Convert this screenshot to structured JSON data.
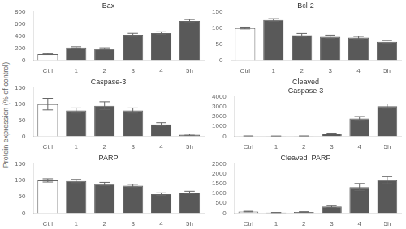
{
  "chart_data": [
    {
      "type": "bar",
      "title": "Bax",
      "categories": [
        "Ctrl",
        "1",
        "2",
        "3",
        "4",
        "5h"
      ],
      "values": [
        100,
        210,
        190,
        420,
        450,
        650
      ],
      "errors": [
        8,
        12,
        15,
        25,
        20,
        25
      ],
      "colors": [
        "#ffffff",
        "#595959",
        "#595959",
        "#595959",
        "#595959",
        "#595959"
      ],
      "ylim": [
        0,
        800
      ],
      "yticks": [
        0,
        200,
        400,
        600,
        800
      ],
      "grid": false
    },
    {
      "type": "bar",
      "title": "Bcl-2",
      "categories": [
        "Ctrl",
        "1",
        "2",
        "3",
        "4",
        "5h"
      ],
      "values": [
        100,
        125,
        78,
        73,
        70,
        57
      ],
      "errors": [
        3,
        4,
        5,
        5,
        4,
        4
      ],
      "colors": [
        "#ffffff",
        "#595959",
        "#595959",
        "#595959",
        "#595959",
        "#595959"
      ],
      "ylim": [
        0,
        150
      ],
      "yticks": [
        0,
        50,
        100,
        150
      ],
      "grid": false
    },
    {
      "type": "bar",
      "title": "Caspase-3",
      "ylabel": "Protein expression (% of control)",
      "categories": [
        "Ctrl",
        "1",
        "2",
        "3",
        "4",
        "5h"
      ],
      "values": [
        100,
        80,
        95,
        80,
        37,
        5
      ],
      "errors": [
        18,
        8,
        12,
        8,
        5,
        2
      ],
      "colors": [
        "#ffffff",
        "#595959",
        "#595959",
        "#595959",
        "#595959",
        "#595959"
      ],
      "ylim": [
        0,
        150
      ],
      "yticks": [
        0,
        50,
        100,
        150
      ],
      "grid": false
    },
    {
      "type": "bar",
      "title": "Cleaved\nCaspase-3",
      "categories": [
        "Ctrl",
        "1",
        "2",
        "3",
        "4",
        "5h"
      ],
      "values": [
        15,
        10,
        15,
        280,
        1800,
        3050
      ],
      "errors": [
        3,
        3,
        3,
        40,
        200,
        220
      ],
      "colors": [
        "#ffffff",
        "#595959",
        "#595959",
        "#595959",
        "#595959",
        "#595959"
      ],
      "ylim": [
        0,
        4000
      ],
      "yticks": [
        0,
        1000,
        2000,
        3000,
        4000
      ],
      "grid": false
    },
    {
      "type": "bar",
      "title": "PARP",
      "categories": [
        "Ctrl",
        "1",
        "2",
        "3",
        "4",
        "5h"
      ],
      "values": [
        100,
        98,
        89,
        84,
        58,
        63
      ],
      "errors": [
        5,
        5,
        5,
        4,
        4,
        4
      ],
      "colors": [
        "#ffffff",
        "#595959",
        "#595959",
        "#595959",
        "#595959",
        "#595959"
      ],
      "ylim": [
        0,
        150
      ],
      "yticks": [
        0,
        50,
        100,
        150
      ],
      "grid": false
    },
    {
      "type": "bar",
      "title": "Cleaved  PARP",
      "categories": [
        "Ctrl",
        "1",
        "2",
        "3",
        "4",
        "5h"
      ],
      "values": [
        80,
        25,
        60,
        340,
        1330,
        1680
      ],
      "errors": [
        15,
        5,
        10,
        60,
        180,
        180
      ],
      "colors": [
        "#ffffff",
        "#595959",
        "#595959",
        "#595959",
        "#595959",
        "#595959"
      ],
      "ylim": [
        0,
        2500
      ],
      "yticks": [
        0,
        500,
        1000,
        1500,
        2000,
        2500
      ],
      "grid": false
    }
  ]
}
